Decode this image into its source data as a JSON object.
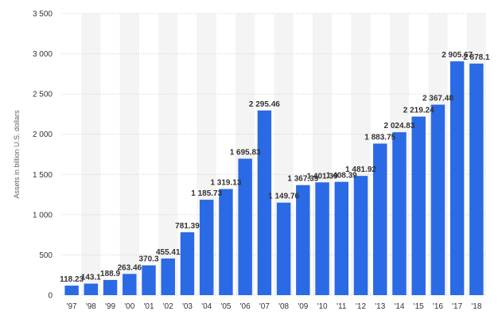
{
  "chart_data": {
    "type": "bar",
    "ylabel": "Assets in billion U.S. dollars",
    "ylim": [
      0,
      3500
    ],
    "yticks": [
      0,
      500,
      1000,
      1500,
      2000,
      2500,
      3000,
      3500
    ],
    "ytick_labels": [
      "0",
      "500",
      "1 000",
      "1 500",
      "2 000",
      "2 500",
      "3 000",
      "3 500"
    ],
    "grid": true,
    "categories": [
      "'97",
      "'98",
      "'99",
      "'00",
      "'01",
      "'02",
      "'03",
      "'04",
      "'05",
      "'06",
      "'07",
      "'08",
      "'09",
      "'10",
      "'11",
      "'12",
      "'13",
      "'14",
      "'15",
      "'16",
      "'17",
      "'18"
    ],
    "values": [
      118.23,
      143.1,
      188.9,
      263.46,
      370.3,
      455.41,
      781.39,
      1185.73,
      1319.13,
      1695.83,
      2295.46,
      1149.76,
      1367.39,
      1401.39,
      1408.39,
      1481.92,
      1883.75,
      2024.83,
      2219.24,
      2367.48,
      2905.67,
      2878.1
    ],
    "value_labels": [
      "118.23",
      "143.1",
      "188.9",
      "263.46",
      "370.3",
      "455.41",
      "781.39",
      "1 185.73",
      "1 319.13",
      "1 695.83",
      "2 295.46",
      "1 149.76",
      "1 367.39",
      "1 401.39",
      "1 408.39",
      "1 481.92",
      "1 883.75",
      "2 024.83",
      "2 219.24",
      "2 367.48",
      "2 905.67",
      "2 878.1"
    ],
    "bar_color": "#2a6ae5",
    "band_color": "#f4f4f4",
    "grid_color": "#cccccc"
  }
}
